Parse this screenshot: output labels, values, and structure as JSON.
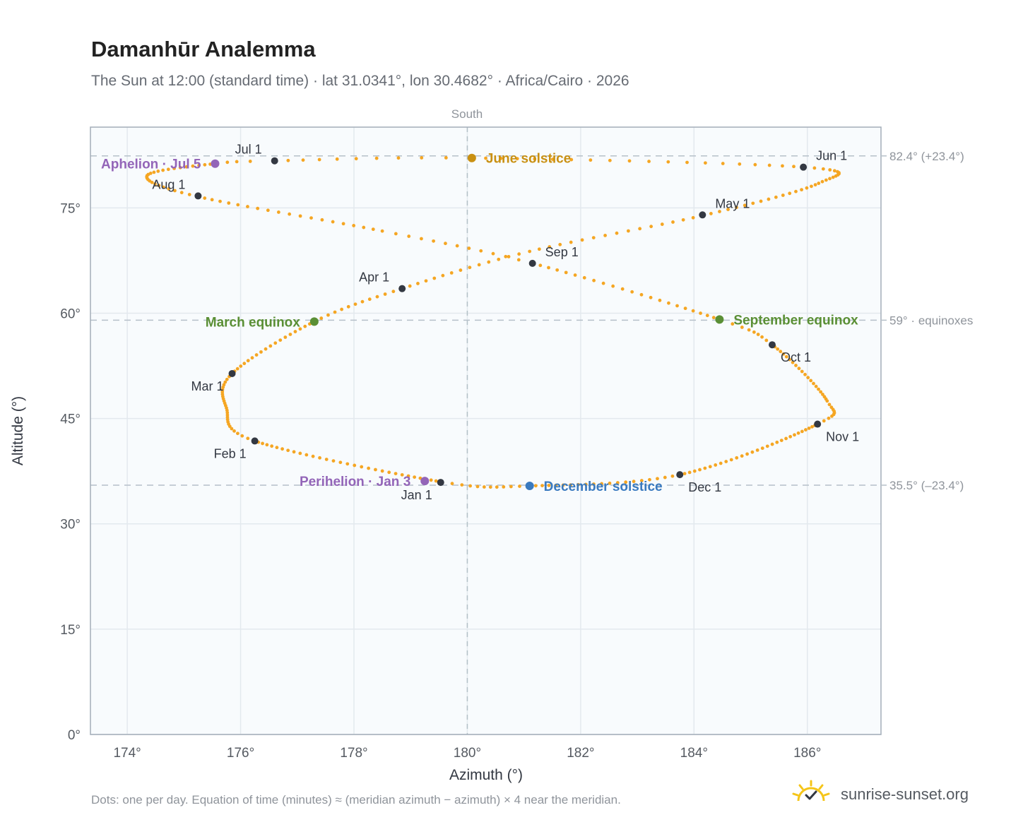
{
  "title": "Damanhūr Analemma",
  "subtitle": "The Sun at 12:00 (standard time) · lat 31.0341°, lon 30.4682° · Africa/Cairo · 2026",
  "footnote": "Dots: one per day. Equation of time (minutes) ≈ (meridian azimuth − azimuth) × 4 near the meridian.",
  "brand": {
    "text": "sunrise-sunset.org",
    "icon": "sun-logo-icon"
  },
  "colors": {
    "path": "#f5a623",
    "month_marker": "#333842",
    "june": "#c99012",
    "december": "#3a7abf",
    "equinox": "#5a8f35",
    "apsis": "#9365b8",
    "plot_bg": "#f8fbfd",
    "grid": "#e3e9ee"
  },
  "chart_data": {
    "type": "scatter",
    "xlabel": "Azimuth (°)",
    "ylabel": "Altitude (°)",
    "xlim": [
      173.35,
      187.3
    ],
    "ylim": [
      0,
      86.5
    ],
    "x_ticks": [
      174,
      176,
      178,
      180,
      182,
      184,
      186
    ],
    "x_tick_labels": [
      "174°",
      "176°",
      "178°",
      "180°",
      "182°",
      "184°",
      "186°"
    ],
    "y_ticks": [
      0,
      15,
      30,
      45,
      60,
      75
    ],
    "y_tick_labels": [
      "0°",
      "15°",
      "30°",
      "45°",
      "60°",
      "75°"
    ],
    "grid": true,
    "top_label": "South",
    "meridian_x": 180,
    "reference_lines": [
      {
        "y": 82.4,
        "label": "82.4° (+23.4°)"
      },
      {
        "y": 59.0,
        "label": "59° · equinoxes"
      },
      {
        "y": 35.5,
        "label": "35.5° (–23.4°)"
      }
    ],
    "path_nodes": [
      {
        "doy": 1,
        "az": 179.53,
        "alt": 36.0
      },
      {
        "doy": 32,
        "az": 176.25,
        "alt": 41.8
      },
      {
        "doy": 46,
        "az": 175.75,
        "alt": 46.5
      },
      {
        "doy": 60,
        "az": 175.85,
        "alt": 51.4
      },
      {
        "doy": 79,
        "az": 177.3,
        "alt": 58.8
      },
      {
        "doy": 91,
        "az": 178.85,
        "alt": 63.5
      },
      {
        "doy": 105,
        "az": 181.1,
        "alt": 68.8
      },
      {
        "doy": 121,
        "az": 184.15,
        "alt": 73.9
      },
      {
        "doy": 138,
        "az": 186.2,
        "alt": 78.5
      },
      {
        "doy": 152,
        "az": 185.93,
        "alt": 80.8
      },
      {
        "doy": 172,
        "az": 180.08,
        "alt": 82.1
      },
      {
        "doy": 182,
        "az": 176.6,
        "alt": 81.7
      },
      {
        "doy": 186,
        "az": 175.55,
        "alt": 81.3
      },
      {
        "doy": 200,
        "az": 174.35,
        "alt": 79.6
      },
      {
        "doy": 213,
        "az": 175.25,
        "alt": 76.6
      },
      {
        "doy": 232,
        "az": 178.5,
        "alt": 71.7
      },
      {
        "doy": 244,
        "az": 181.15,
        "alt": 67.1
      },
      {
        "doy": 266,
        "az": 184.45,
        "alt": 59.1
      },
      {
        "doy": 274,
        "az": 185.38,
        "alt": 55.5
      },
      {
        "doy": 295,
        "az": 186.35,
        "alt": 47.5
      },
      {
        "doy": 305,
        "az": 186.18,
        "alt": 44.2
      },
      {
        "doy": 335,
        "az": 183.75,
        "alt": 37.0
      },
      {
        "doy": 355,
        "az": 181.1,
        "alt": 35.4
      },
      {
        "doy": 366,
        "az": 179.53,
        "alt": 36.0
      }
    ],
    "month_markers": [
      {
        "label": "Jan 1",
        "az": 179.53,
        "alt": 35.9,
        "anchor": "below-left"
      },
      {
        "label": "Feb 1",
        "az": 176.25,
        "alt": 41.8,
        "anchor": "below-left"
      },
      {
        "label": "Mar 1",
        "az": 175.85,
        "alt": 51.4,
        "anchor": "below-left"
      },
      {
        "label": "Apr 1",
        "az": 178.85,
        "alt": 63.5,
        "anchor": "above-left"
      },
      {
        "label": "May 1",
        "az": 184.15,
        "alt": 74.0,
        "anchor": "above-right"
      },
      {
        "label": "Jun 1",
        "az": 185.93,
        "alt": 80.8,
        "anchor": "above-right"
      },
      {
        "label": "Jul 1",
        "az": 176.6,
        "alt": 81.7,
        "anchor": "above-left"
      },
      {
        "label": "Aug 1",
        "az": 175.25,
        "alt": 76.7,
        "anchor": "above-left"
      },
      {
        "label": "Sep 1",
        "az": 181.15,
        "alt": 67.1,
        "anchor": "above-right"
      },
      {
        "label": "Oct 1",
        "az": 185.38,
        "alt": 55.5,
        "anchor": "below-right"
      },
      {
        "label": "Nov 1",
        "az": 186.18,
        "alt": 44.2,
        "anchor": "below-right"
      },
      {
        "label": "Dec 1",
        "az": 183.75,
        "alt": 37.0,
        "anchor": "below-right"
      }
    ],
    "events": [
      {
        "label": "June solstice",
        "az": 180.08,
        "alt": 82.1,
        "color": "june",
        "anchor": "right"
      },
      {
        "label": "December solstice",
        "az": 181.1,
        "alt": 35.4,
        "color": "december",
        "anchor": "right"
      },
      {
        "label": "March equinox",
        "az": 177.3,
        "alt": 58.8,
        "color": "equinox",
        "anchor": "left"
      },
      {
        "label": "September equinox",
        "az": 184.45,
        "alt": 59.1,
        "color": "equinox",
        "anchor": "right"
      },
      {
        "label": "Aphelion · Jul 5",
        "az": 175.55,
        "alt": 81.3,
        "color": "apsis",
        "anchor": "left"
      },
      {
        "label": "Perihelion · Jan 3",
        "az": 179.25,
        "alt": 36.1,
        "color": "apsis",
        "anchor": "left"
      }
    ]
  }
}
